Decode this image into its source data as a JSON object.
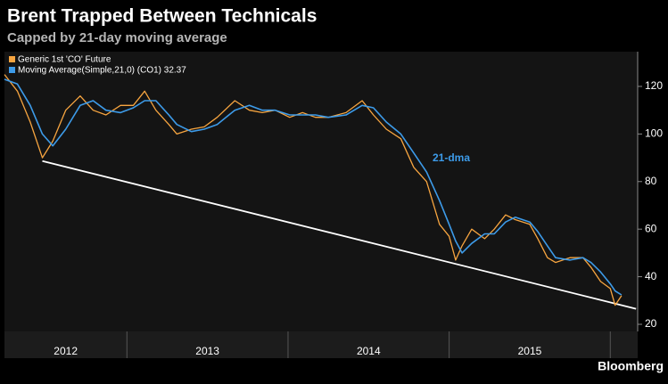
{
  "chart_data": {
    "type": "line",
    "title": "Brent Trapped Between Technicals",
    "subtitle": "Capped by 21-day moving average",
    "annotation": "21-dma",
    "source": "Bloomberg",
    "x": [
      2012.24,
      2012.32,
      2012.4,
      2012.475,
      2012.54,
      2012.62,
      2012.71,
      2012.79,
      2012.87,
      2012.96,
      2013.04,
      2013.11,
      2013.18,
      2013.26,
      2013.31,
      2013.4,
      2013.48,
      2013.56,
      2013.67,
      2013.76,
      2013.84,
      2013.92,
      2014.01,
      2014.09,
      2014.17,
      2014.25,
      2014.36,
      2014.46,
      2014.53,
      2014.61,
      2014.7,
      2014.78,
      2014.86,
      2014.94,
      2015.0,
      2015.04,
      2015.08,
      2015.14,
      2015.22,
      2015.28,
      2015.35,
      2015.41,
      2015.5,
      2015.55,
      2015.61,
      2015.66,
      2015.75,
      2015.83,
      2015.88,
      2015.94,
      2016.0,
      2016.03,
      2016.07
    ],
    "series": [
      {
        "name": "Generic 1st 'CO' Future",
        "color": "#f7a540",
        "values": [
          125,
          118,
          105,
          90,
          97,
          110,
          116,
          110,
          108,
          112,
          112,
          118,
          110,
          104,
          100,
          102,
          103,
          107,
          114,
          110,
          109,
          110,
          107,
          109,
          107,
          107,
          109,
          114,
          108,
          102,
          98,
          86,
          80,
          62,
          57,
          47,
          53,
          60,
          56,
          60,
          66,
          64,
          62,
          56,
          48,
          46,
          48,
          48,
          44,
          38,
          35,
          28,
          32
        ]
      },
      {
        "name": "Moving Average(Simple,21,0) (CO1) 32.37",
        "color": "#3d9be9",
        "values": [
          123,
          121,
          112,
          100,
          95,
          102,
          112,
          114,
          110,
          109,
          111,
          114,
          114,
          108,
          104,
          101,
          102,
          104,
          110,
          112,
          110,
          110,
          108,
          108,
          108,
          107,
          108,
          112,
          111,
          105,
          100,
          92,
          84,
          72,
          62,
          55,
          50,
          54,
          58,
          58,
          63,
          65,
          63,
          59,
          53,
          48,
          47,
          48,
          46,
          42,
          37,
          34,
          32.37
        ]
      }
    ],
    "trendline": {
      "color": "#ffffff",
      "x": [
        2012.475,
        2016.16
      ],
      "values": [
        88.6,
        26.5
      ]
    },
    "xlim": [
      2012.24,
      2016.17
    ],
    "xticks": [
      {
        "value": 2012.5,
        "label": "2012"
      },
      {
        "value": 2013.5,
        "label": "2013"
      },
      {
        "value": 2014.5,
        "label": "2014"
      },
      {
        "value": 2015.5,
        "label": "2015"
      }
    ],
    "ylim": [
      17,
      134.6
    ],
    "yticks": [
      20,
      40,
      60,
      80,
      100,
      120
    ],
    "grid": false
  }
}
